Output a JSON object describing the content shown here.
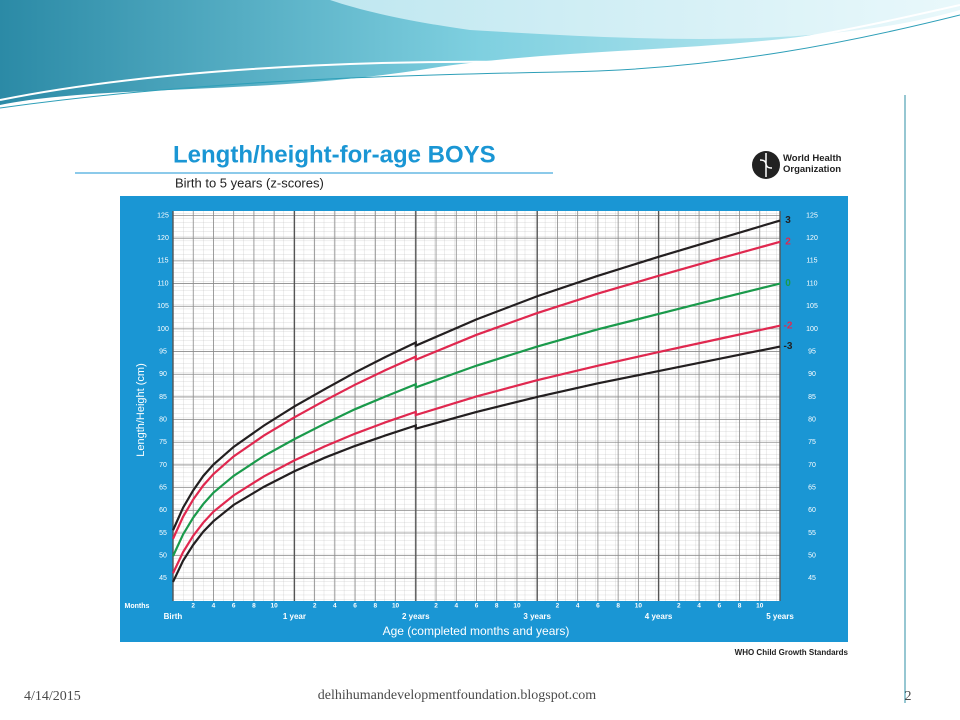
{
  "chart_data": {
    "type": "line",
    "title": "Length/height-for-age BOYS",
    "subtitle": "Birth to 5 years (z-scores)",
    "y_label": "Length/Height (cm)",
    "x_label": "Age (completed months and years)",
    "x_unit_label": "Months",
    "source": "WHO Child Growth Standards",
    "logo_text": "World Health Organization",
    "x": [
      0,
      1,
      2,
      3,
      4,
      6,
      9,
      12,
      15,
      18,
      21,
      24,
      24,
      30,
      36,
      42,
      48,
      54,
      60
    ],
    "xlim": [
      0,
      60
    ],
    "ylim": [
      40,
      126
    ],
    "yticks": [
      45,
      50,
      55,
      60,
      65,
      70,
      75,
      80,
      85,
      90,
      95,
      100,
      105,
      110,
      115,
      120,
      125
    ],
    "xticks": [
      {
        "value": 0,
        "label": "Birth"
      },
      2,
      4,
      6,
      8,
      10,
      {
        "value": 12,
        "label": "1 year"
      },
      {
        "value": 14,
        "label": "2"
      },
      {
        "value": 16,
        "label": "4"
      },
      {
        "value": 18,
        "label": "6"
      },
      {
        "value": 20,
        "label": "8"
      },
      {
        "value": 22,
        "label": "10"
      },
      {
        "value": 24,
        "label": "2 years"
      },
      {
        "value": 26,
        "label": "2"
      },
      {
        "value": 28,
        "label": "4"
      },
      {
        "value": 30,
        "label": "6"
      },
      {
        "value": 32,
        "label": "8"
      },
      {
        "value": 34,
        "label": "10"
      },
      {
        "value": 36,
        "label": "3 years"
      },
      {
        "value": 38,
        "label": "2"
      },
      {
        "value": 40,
        "label": "4"
      },
      {
        "value": 42,
        "label": "6"
      },
      {
        "value": 44,
        "label": "8"
      },
      {
        "value": 46,
        "label": "10"
      },
      {
        "value": 48,
        "label": "4 years"
      },
      {
        "value": 50,
        "label": "2"
      },
      {
        "value": 52,
        "label": "4"
      },
      {
        "value": 54,
        "label": "6"
      },
      {
        "value": 56,
        "label": "8"
      },
      {
        "value": 58,
        "label": "10"
      },
      {
        "value": 60,
        "label": "5 years"
      }
    ],
    "grid": true,
    "series": [
      {
        "name": "3",
        "color": "#231f20",
        "values": [
          55.6,
          60.6,
          64.4,
          67.6,
          70.1,
          74.0,
          78.7,
          82.9,
          86.7,
          90.4,
          93.8,
          97.0,
          96.3,
          102.1,
          107.2,
          111.7,
          115.9,
          119.9,
          123.9
        ]
      },
      {
        "name": "2",
        "color": "#e0284f",
        "values": [
          53.7,
          58.6,
          62.4,
          65.5,
          68.0,
          71.9,
          76.5,
          80.5,
          84.2,
          87.7,
          90.9,
          93.9,
          93.2,
          98.7,
          103.5,
          107.8,
          111.7,
          115.5,
          119.2
        ]
      },
      {
        "name": "0",
        "color": "#1a9a4b",
        "values": [
          49.9,
          54.7,
          58.4,
          61.4,
          63.9,
          67.6,
          72.0,
          75.7,
          79.1,
          82.3,
          85.1,
          87.8,
          87.1,
          91.9,
          96.1,
          99.9,
          103.3,
          106.7,
          110.0
        ]
      },
      {
        "name": "-2",
        "color": "#e0284f",
        "values": [
          46.1,
          50.8,
          54.4,
          57.3,
          59.7,
          63.3,
          67.5,
          71.0,
          74.1,
          76.9,
          79.4,
          81.7,
          81.0,
          85.1,
          88.7,
          91.9,
          94.9,
          97.8,
          100.7
        ]
      },
      {
        "name": "-3",
        "color": "#231f20",
        "values": [
          44.2,
          48.9,
          52.4,
          55.3,
          57.6,
          61.2,
          65.2,
          68.6,
          71.6,
          74.2,
          76.5,
          78.7,
          78.0,
          81.7,
          85.0,
          88.0,
          90.7,
          93.4,
          96.1
        ]
      }
    ]
  },
  "footer": {
    "date": "4/14/2015",
    "site": "delhihumandevelopmentfoundation.blogspot.com",
    "page": "2"
  }
}
